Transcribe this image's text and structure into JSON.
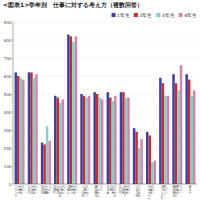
{
  "chart_data": {
    "type": "bar",
    "title": "<図表1>学年別　仕事に対する考え方（複数回答）",
    "categories": [
      "やりがい\nのある\n仕事を\nしたい",
      "自分の\n好きな\n仕事を\nしたい",
      "自分の\n能力や\n個性を\n活かし\nたい",
      "自分の\n夢や\n目標に\n向かって\n仕事を\nしたい",
      "社会に\n貢献\nできる\n仕事を\nしたい",
      "安定した\n仕事に\nつきたい",
      "就職活動\nに役立て\nたい",
      "将来の\n夢や\n希望を\n叶えたい",
      "自分の\n成長に\nつながる\n仕事を\nしたい",
      "高い収入\nを得たい",
      "さまざまな\n経験を\nしたい",
      "グローバル\nに活躍\nしたい",
      "就職活動\nへの不安\nを解消\nしたい",
      "その他"
    ],
    "series": [
      {
        "name": "1年生",
        "color": "#4040a0",
        "values": [
          620,
          620,
          230,
          490,
          830,
          500,
          510,
          510,
          510,
          310,
          290,
          590,
          610,
          610
        ]
      },
      {
        "name": "2年生",
        "color": "#c03030",
        "values": [
          600,
          620,
          220,
          480,
          820,
          490,
          500,
          480,
          510,
          290,
          270,
          560,
          560,
          580
        ]
      },
      {
        "name": "3年生",
        "color": "#88cccc",
        "values": [
          590,
          590,
          320,
          450,
          790,
          480,
          480,
          460,
          480,
          200,
          120,
          490,
          520,
          490
        ]
      },
      {
        "name": "4年生",
        "color": "#cc88aa",
        "values": [
          580,
          610,
          240,
          470,
          820,
          490,
          470,
          490,
          480,
          250,
          130,
          490,
          660,
          520
        ]
      }
    ],
    "ylim": [
      0,
      900
    ],
    "yticks": [
      0,
      100,
      200,
      300,
      400,
      500,
      600,
      700,
      800,
      900
    ],
    "grid": true,
    "legend": "upper right"
  }
}
